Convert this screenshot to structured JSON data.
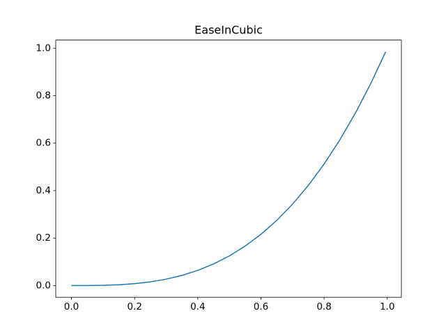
{
  "chart_data": {
    "type": "line",
    "title": "EaseInCubic",
    "x": [
      0,
      0.05,
      0.1,
      0.15,
      0.2,
      0.25,
      0.3,
      0.35,
      0.4,
      0.45,
      0.5,
      0.55,
      0.6,
      0.65,
      0.7,
      0.75,
      0.8,
      0.85,
      0.9,
      0.95,
      0.995
    ],
    "series": [
      {
        "color": "#1f77b4",
        "values": [
          0,
          0.000125,
          0.001,
          0.003375,
          0.008,
          0.015625,
          0.027,
          0.042875,
          0.064,
          0.091125,
          0.125,
          0.166375,
          0.216,
          0.274625,
          0.343,
          0.421875,
          0.512,
          0.614125,
          0.729,
          0.857375,
          0.985075
        ]
      }
    ],
    "xlim": [
      -0.04975,
      1.04475
    ],
    "ylim": [
      -0.04925,
      1.03425
    ],
    "xticks": [
      {
        "value": 0,
        "label": "0.0"
      },
      {
        "value": 0.2,
        "label": "0.2"
      },
      {
        "value": 0.4,
        "label": "0.4"
      },
      {
        "value": 0.6,
        "label": "0.6"
      },
      {
        "value": 0.8,
        "label": "0.8"
      },
      {
        "value": 1,
        "label": "1.0"
      }
    ],
    "yticks": [
      {
        "value": 0,
        "label": "0.0"
      },
      {
        "value": 0.2,
        "label": "0.2"
      },
      {
        "value": 0.4,
        "label": "0.4"
      },
      {
        "value": 0.6,
        "label": "0.6"
      },
      {
        "value": 0.8,
        "label": "0.8"
      },
      {
        "value": 1,
        "label": "1.0"
      }
    ],
    "grid": false
  }
}
